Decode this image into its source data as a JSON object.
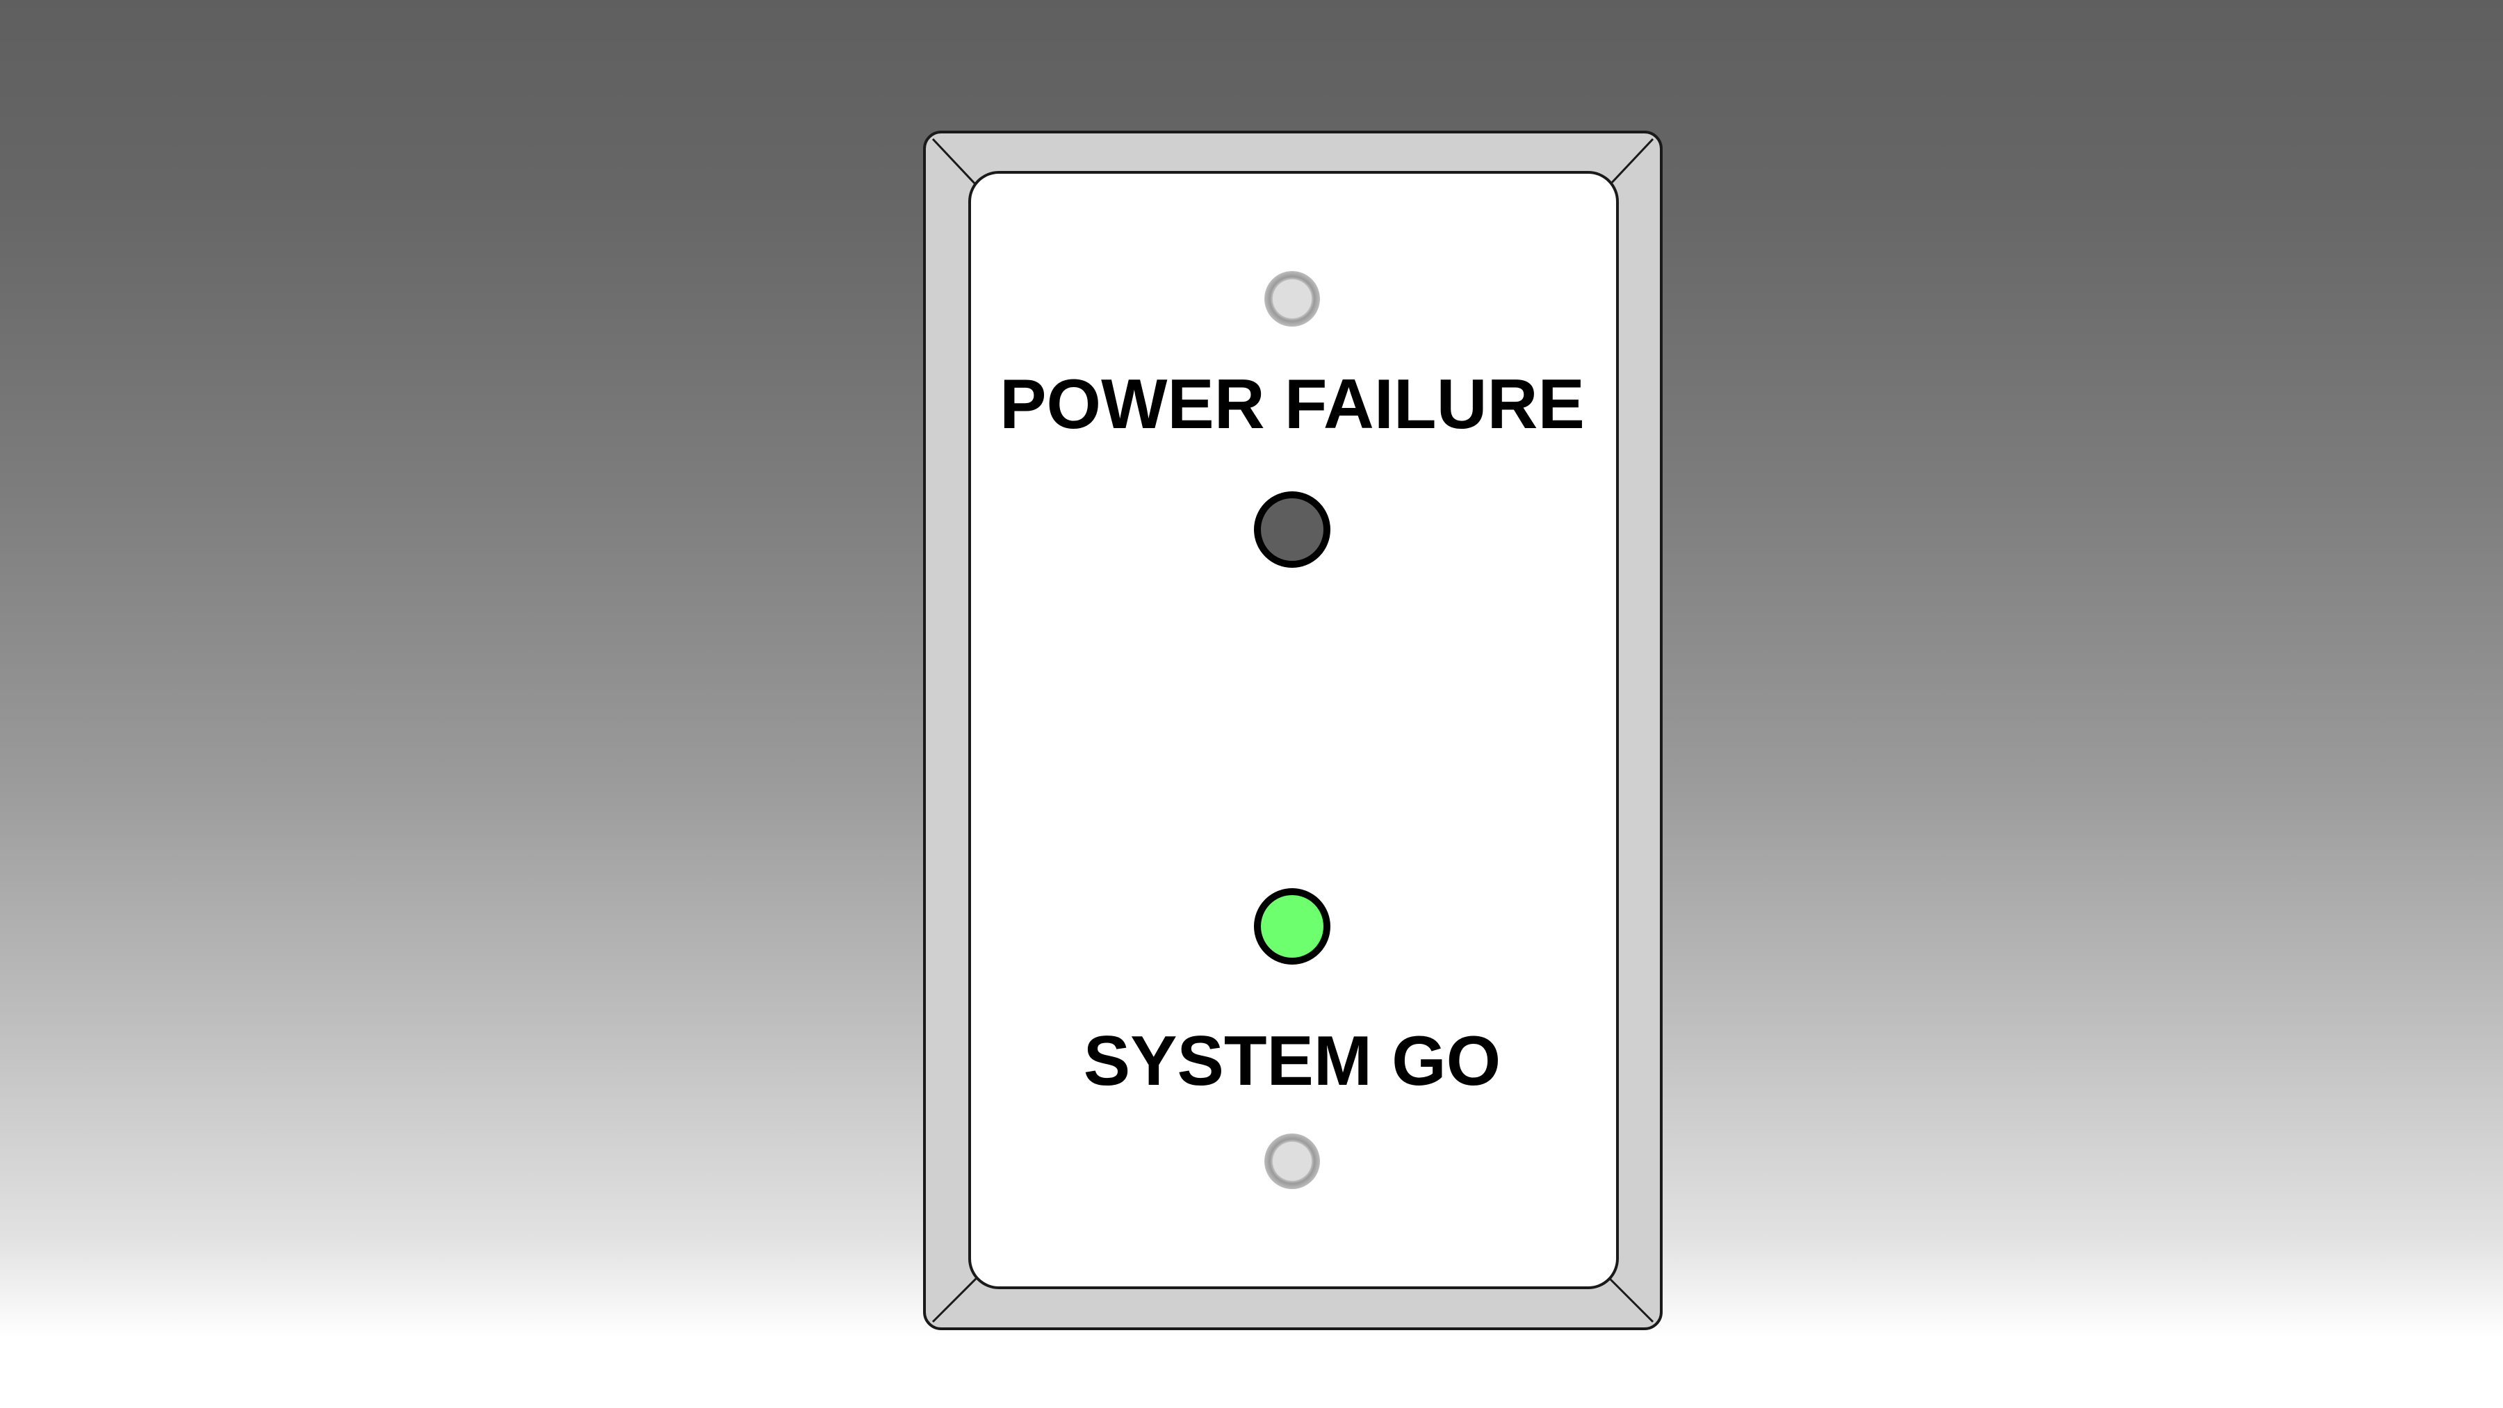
{
  "panel": {
    "top_label": "POWER FAILURE",
    "bottom_label": "SYSTEM GO",
    "indicators": [
      {
        "name": "power-failure-indicator",
        "state": "off",
        "color": "#5e5e5e"
      },
      {
        "name": "system-go-indicator",
        "state": "on",
        "color": "#6dff6d"
      }
    ],
    "screws": [
      {
        "name": "top-screw",
        "icon": "screw-icon"
      },
      {
        "name": "bottom-screw",
        "icon": "screw-icon"
      }
    ]
  },
  "colors": {
    "plate_fill": "#ffffff",
    "bezel_fill": "#d0d0d0",
    "outline": "#1a1a1a",
    "indicator_off": "#5e5e5e",
    "indicator_on": "#6dff6d"
  }
}
